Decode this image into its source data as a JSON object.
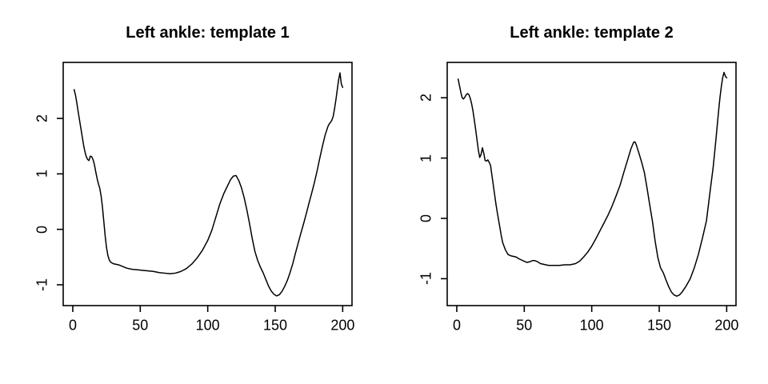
{
  "app": {
    "background_color": "#ffffff",
    "foreground_color": "#000000"
  },
  "chart_data": [
    {
      "type": "line",
      "title": "Left ankle: template 1",
      "xlabel": "",
      "ylabel": "",
      "grid": false,
      "legend": null,
      "x_ticks": [
        0,
        50,
        100,
        150,
        200
      ],
      "y_ticks": [
        2,
        1,
        0,
        -1
      ],
      "xlim": [
        -7.1,
        206.9
      ],
      "ylim": [
        -1.375,
        3.01
      ],
      "line_color": "#000000",
      "series": [
        {
          "name": "template 1",
          "points": [
            [
              1,
              2.52
            ],
            [
              2,
              2.42
            ],
            [
              3,
              2.28
            ],
            [
              4,
              2.12
            ],
            [
              5,
              1.97
            ],
            [
              6,
              1.82
            ],
            [
              7,
              1.67
            ],
            [
              8,
              1.52
            ],
            [
              9,
              1.4
            ],
            [
              10,
              1.31
            ],
            [
              11,
              1.26
            ],
            [
              12,
              1.24
            ],
            [
              13,
              1.32
            ],
            [
              14,
              1.31
            ],
            [
              15,
              1.26
            ],
            [
              16,
              1.17
            ],
            [
              17,
              1.04
            ],
            [
              18,
              0.92
            ],
            [
              19,
              0.82
            ],
            [
              20,
              0.74
            ],
            [
              21,
              0.6
            ],
            [
              22,
              0.4
            ],
            [
              23,
              0.14
            ],
            [
              24,
              -0.12
            ],
            [
              25,
              -0.33
            ],
            [
              26,
              -0.47
            ],
            [
              27,
              -0.55
            ],
            [
              28,
              -0.59
            ],
            [
              30,
              -0.62
            ],
            [
              32,
              -0.63
            ],
            [
              34,
              -0.64
            ],
            [
              36,
              -0.66
            ],
            [
              38,
              -0.68
            ],
            [
              40,
              -0.7
            ],
            [
              44,
              -0.72
            ],
            [
              48,
              -0.73
            ],
            [
              52,
              -0.74
            ],
            [
              56,
              -0.75
            ],
            [
              60,
              -0.76
            ],
            [
              64,
              -0.78
            ],
            [
              68,
              -0.79
            ],
            [
              72,
              -0.8
            ],
            [
              76,
              -0.79
            ],
            [
              80,
              -0.76
            ],
            [
              84,
              -0.71
            ],
            [
              88,
              -0.63
            ],
            [
              92,
              -0.52
            ],
            [
              96,
              -0.38
            ],
            [
              100,
              -0.2
            ],
            [
              103,
              -0.02
            ],
            [
              106,
              0.22
            ],
            [
              109,
              0.46
            ],
            [
              112,
              0.65
            ],
            [
              115,
              0.8
            ],
            [
              117,
              0.9
            ],
            [
              119,
              0.96
            ],
            [
              121,
              0.97
            ],
            [
              123,
              0.88
            ],
            [
              125,
              0.75
            ],
            [
              127,
              0.57
            ],
            [
              129,
              0.35
            ],
            [
              131,
              0.1
            ],
            [
              133,
              -0.17
            ],
            [
              135,
              -0.4
            ],
            [
              137,
              -0.56
            ],
            [
              139,
              -0.68
            ],
            [
              141,
              -0.78
            ],
            [
              143,
              -0.9
            ],
            [
              145,
              -1.02
            ],
            [
              147,
              -1.11
            ],
            [
              149,
              -1.17
            ],
            [
              151,
              -1.2
            ],
            [
              153,
              -1.18
            ],
            [
              155,
              -1.12
            ],
            [
              157,
              -1.03
            ],
            [
              159,
              -0.92
            ],
            [
              161,
              -0.78
            ],
            [
              163,
              -0.62
            ],
            [
              165,
              -0.43
            ],
            [
              167,
              -0.25
            ],
            [
              169,
              -0.07
            ],
            [
              171,
              0.1
            ],
            [
              173,
              0.28
            ],
            [
              175,
              0.47
            ],
            [
              177,
              0.65
            ],
            [
              179,
              0.84
            ],
            [
              181,
              1.05
            ],
            [
              183,
              1.28
            ],
            [
              185,
              1.5
            ],
            [
              187,
              1.7
            ],
            [
              189,
              1.85
            ],
            [
              190,
              1.9
            ],
            [
              191,
              1.93
            ],
            [
              192,
              1.97
            ],
            [
              193,
              2.04
            ],
            [
              194,
              2.18
            ],
            [
              195,
              2.34
            ],
            [
              196,
              2.52
            ],
            [
              197,
              2.7
            ],
            [
              198,
              2.82
            ],
            [
              199,
              2.62
            ],
            [
              200,
              2.56
            ]
          ]
        }
      ]
    },
    {
      "type": "line",
      "title": "Left ankle: template 2",
      "xlabel": "",
      "ylabel": "",
      "grid": false,
      "legend": null,
      "x_ticks": [
        0,
        50,
        100,
        150,
        200
      ],
      "y_ticks": [
        2,
        1,
        0,
        -1
      ],
      "xlim": [
        -7.1,
        206.9
      ],
      "ylim": [
        -1.446,
        2.586
      ],
      "line_color": "#000000",
      "series": [
        {
          "name": "template 2",
          "points": [
            [
              1,
              2.31
            ],
            [
              2,
              2.2
            ],
            [
              3,
              2.09
            ],
            [
              4,
              2.0
            ],
            [
              5,
              1.98
            ],
            [
              6,
              2.01
            ],
            [
              7,
              2.05
            ],
            [
              8,
              2.07
            ],
            [
              9,
              2.05
            ],
            [
              10,
              1.99
            ],
            [
              11,
              1.9
            ],
            [
              12,
              1.78
            ],
            [
              13,
              1.63
            ],
            [
              14,
              1.47
            ],
            [
              15,
              1.3
            ],
            [
              16,
              1.13
            ],
            [
              17,
              1.01
            ],
            [
              18,
              1.06
            ],
            [
              19,
              1.17
            ],
            [
              20,
              1.08
            ],
            [
              21,
              0.96
            ],
            [
              22,
              0.95
            ],
            [
              23,
              0.97
            ],
            [
              24,
              0.93
            ],
            [
              25,
              0.88
            ],
            [
              26,
              0.72
            ],
            [
              27,
              0.56
            ],
            [
              28,
              0.4
            ],
            [
              29,
              0.24
            ],
            [
              30,
              0.1
            ],
            [
              31,
              -0.03
            ],
            [
              32,
              -0.16
            ],
            [
              33,
              -0.29
            ],
            [
              34,
              -0.4
            ],
            [
              36,
              -0.52
            ],
            [
              38,
              -0.6
            ],
            [
              40,
              -0.62
            ],
            [
              42,
              -0.63
            ],
            [
              44,
              -0.64
            ],
            [
              46,
              -0.67
            ],
            [
              48,
              -0.69
            ],
            [
              50,
              -0.71
            ],
            [
              52,
              -0.73
            ],
            [
              54,
              -0.72
            ],
            [
              56,
              -0.7
            ],
            [
              58,
              -0.7
            ],
            [
              60,
              -0.72
            ],
            [
              62,
              -0.75
            ],
            [
              64,
              -0.76
            ],
            [
              66,
              -0.77
            ],
            [
              68,
              -0.78
            ],
            [
              72,
              -0.78
            ],
            [
              76,
              -0.78
            ],
            [
              80,
              -0.77
            ],
            [
              84,
              -0.77
            ],
            [
              88,
              -0.75
            ],
            [
              91,
              -0.71
            ],
            [
              94,
              -0.64
            ],
            [
              97,
              -0.56
            ],
            [
              100,
              -0.46
            ],
            [
              103,
              -0.34
            ],
            [
              106,
              -0.21
            ],
            [
              109,
              -0.08
            ],
            [
              112,
              0.05
            ],
            [
              115,
              0.2
            ],
            [
              118,
              0.37
            ],
            [
              121,
              0.55
            ],
            [
              124,
              0.78
            ],
            [
              127,
              1.0
            ],
            [
              129,
              1.15
            ],
            [
              131,
              1.26
            ],
            [
              132,
              1.27
            ],
            [
              133,
              1.22
            ],
            [
              135,
              1.08
            ],
            [
              137,
              0.93
            ],
            [
              139,
              0.76
            ],
            [
              141,
              0.5
            ],
            [
              143,
              0.22
            ],
            [
              145,
              -0.05
            ],
            [
              147,
              -0.38
            ],
            [
              149,
              -0.65
            ],
            [
              151,
              -0.82
            ],
            [
              153,
              -0.9
            ],
            [
              155,
              -1.02
            ],
            [
              157,
              -1.13
            ],
            [
              159,
              -1.22
            ],
            [
              161,
              -1.27
            ],
            [
              163,
              -1.29
            ],
            [
              165,
              -1.27
            ],
            [
              167,
              -1.22
            ],
            [
              170,
              -1.12
            ],
            [
              173,
              -1.0
            ],
            [
              176,
              -0.82
            ],
            [
              179,
              -0.6
            ],
            [
              182,
              -0.33
            ],
            [
              185,
              -0.04
            ],
            [
              188,
              0.5
            ],
            [
              190,
              0.85
            ],
            [
              192,
              1.3
            ],
            [
              194,
              1.78
            ],
            [
              195,
              2.0
            ],
            [
              196,
              2.18
            ],
            [
              197,
              2.33
            ],
            [
              198,
              2.42
            ],
            [
              199,
              2.36
            ],
            [
              200,
              2.33
            ]
          ]
        }
      ]
    }
  ]
}
